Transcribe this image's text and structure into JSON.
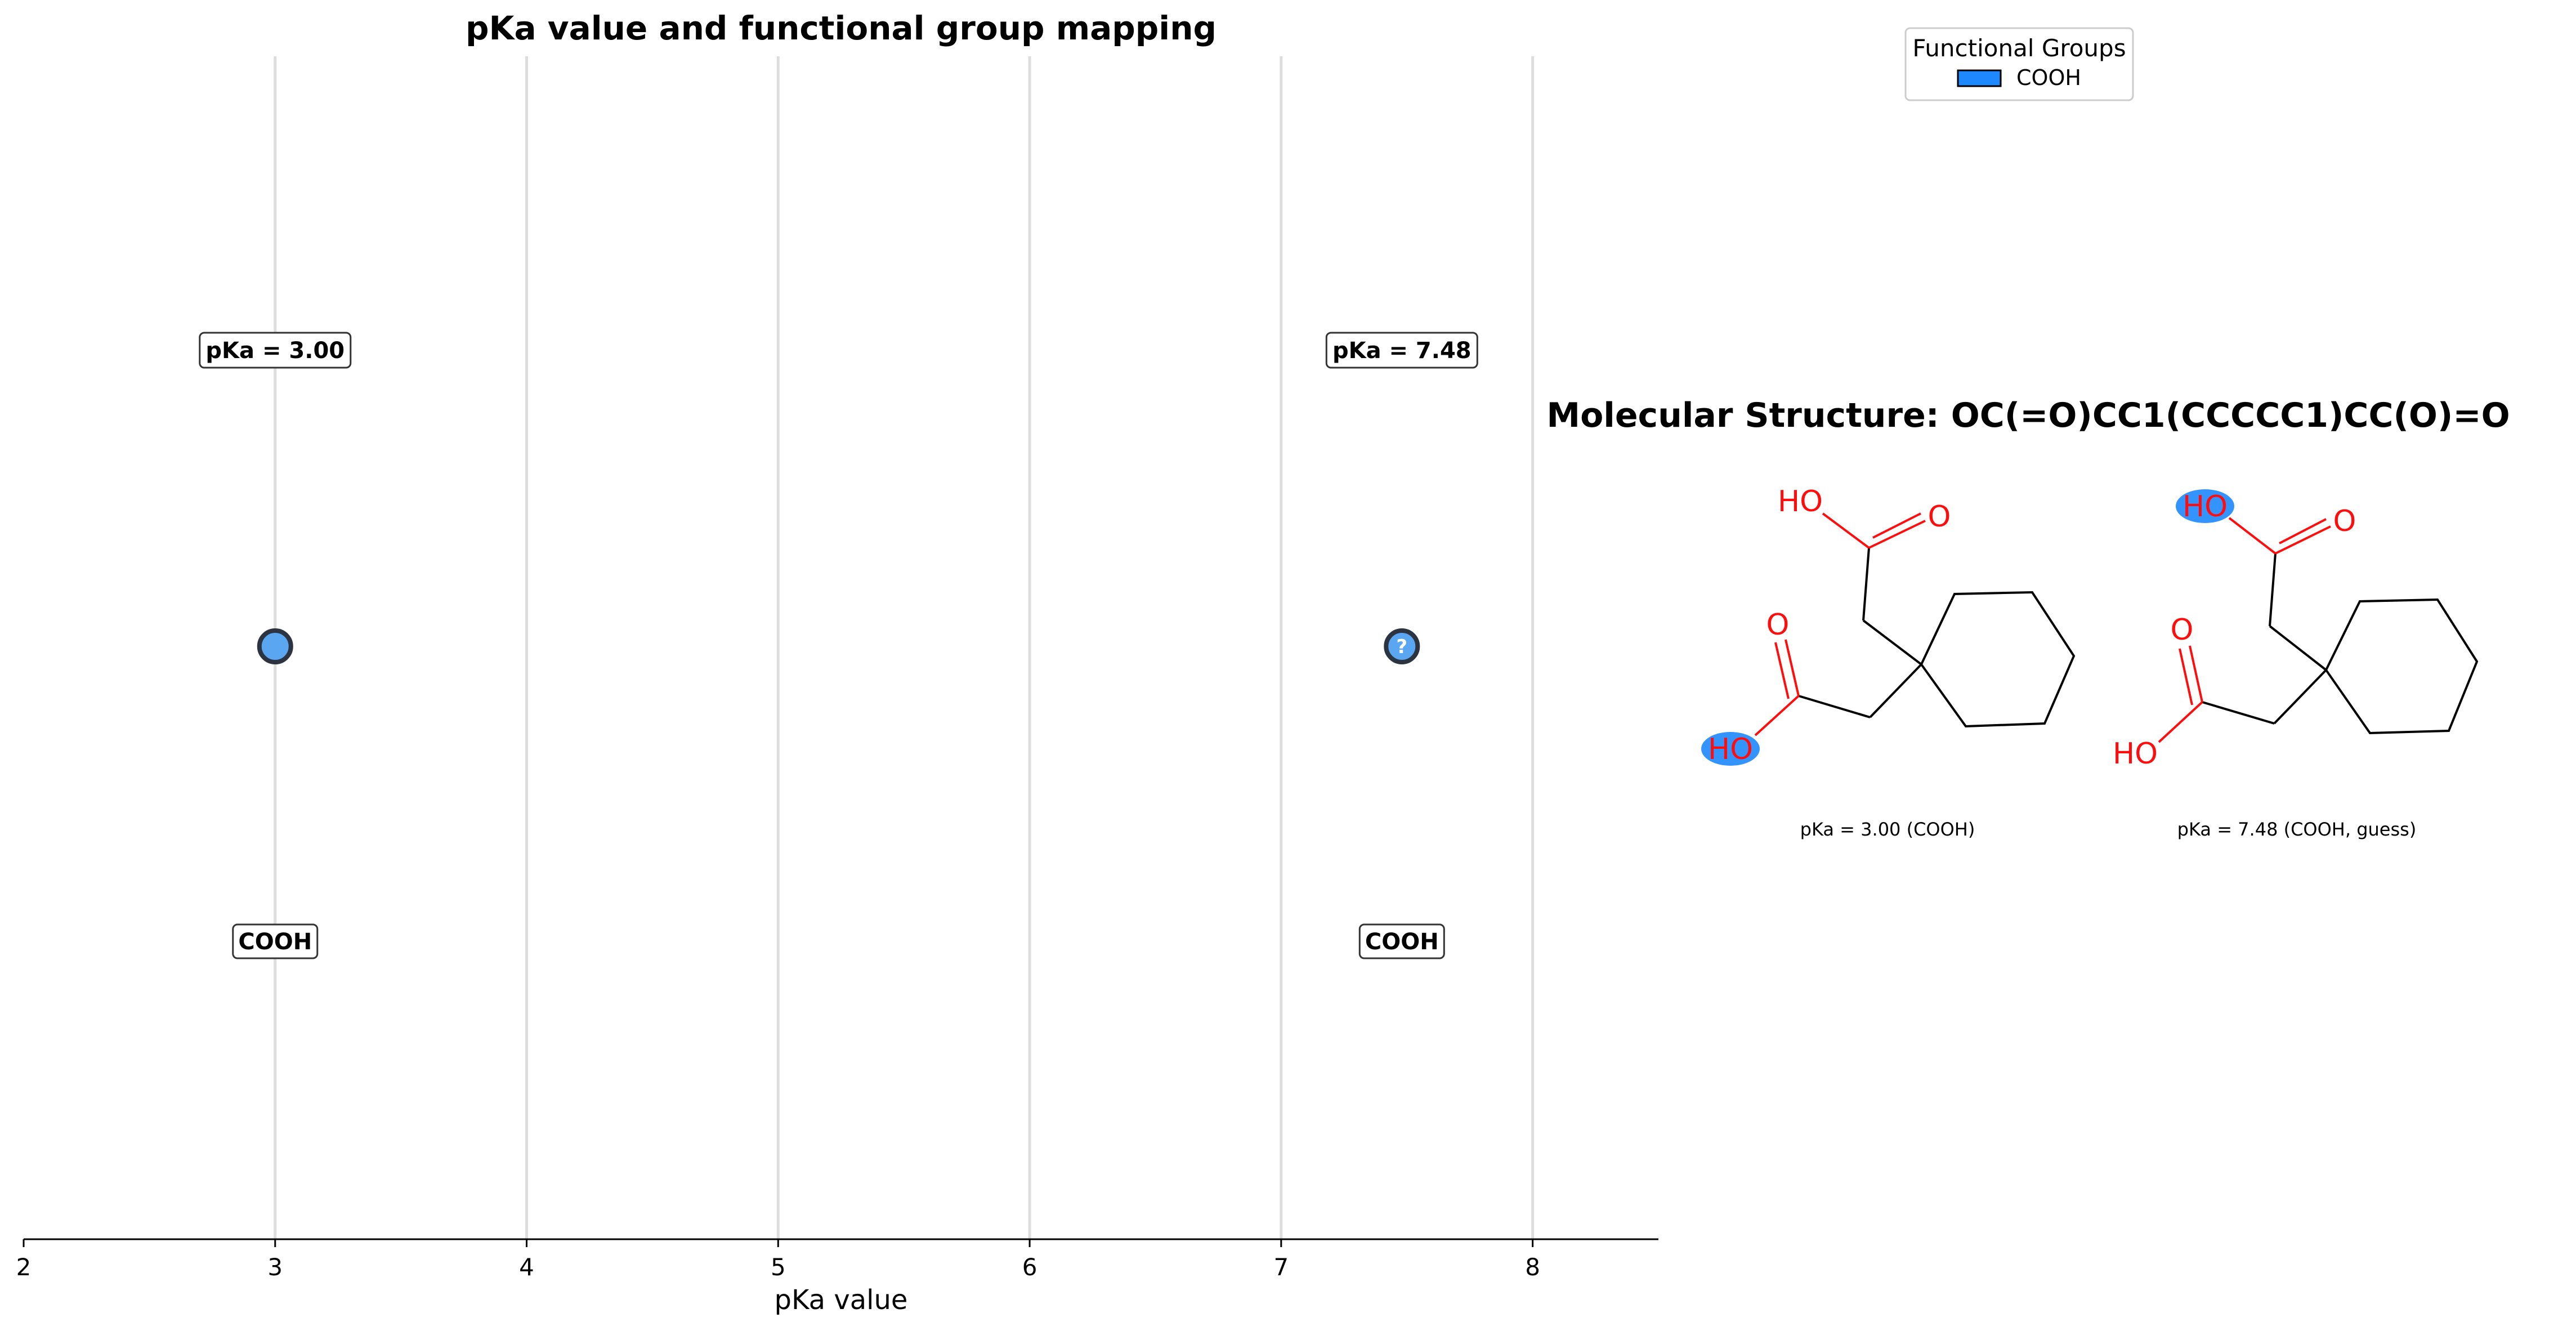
{
  "chart_data": [
    {
      "type": "scatter",
      "title": "pKa value and functional group mapping",
      "xlabel": "pKa value",
      "ylabel": "",
      "xlim": [
        2,
        8.5
      ],
      "xticks": [
        "2",
        "3",
        "4",
        "5",
        "6",
        "7",
        "8"
      ],
      "grid": "vertical",
      "points": [
        {
          "x": 3.0,
          "label": "pKa = 3.00",
          "group": "COOH",
          "marker_text": "",
          "color": "#5aa6f0"
        },
        {
          "x": 7.48,
          "label": "pKa = 7.48",
          "group": "COOH",
          "marker_text": "?",
          "color": "#5aa6f0"
        }
      ]
    },
    {
      "type": "molecule_grid",
      "title": "Molecular Structure: OC(=O)CC1(CCCCC1)CC(O)=O",
      "panels": [
        {
          "caption": "pKa = 3.00 (COOH)",
          "highlight": "lower-HO",
          "atom_labels": {
            "top_oh": "HO",
            "top_o": "O",
            "low_o": "O",
            "low_oh": "HO"
          }
        },
        {
          "caption": "pKa = 7.48 (COOH, guess)",
          "highlight": "upper-HO",
          "atom_labels": {
            "top_oh": "HO",
            "top_o": "O",
            "low_o": "O",
            "low_oh": "HO"
          }
        }
      ]
    }
  ],
  "legend": {
    "title": "Functional Groups",
    "placement": "top-right",
    "items": [
      {
        "label": "COOH",
        "color": "#1e88ff"
      }
    ]
  },
  "colors": {
    "marker_fill": "#5aa6f0",
    "marker_edge": "#2b3440",
    "highlight": "#1e88ff",
    "heteroatom": "#ff0d0d",
    "bond": "#000000",
    "grid": "#dddddd"
  }
}
